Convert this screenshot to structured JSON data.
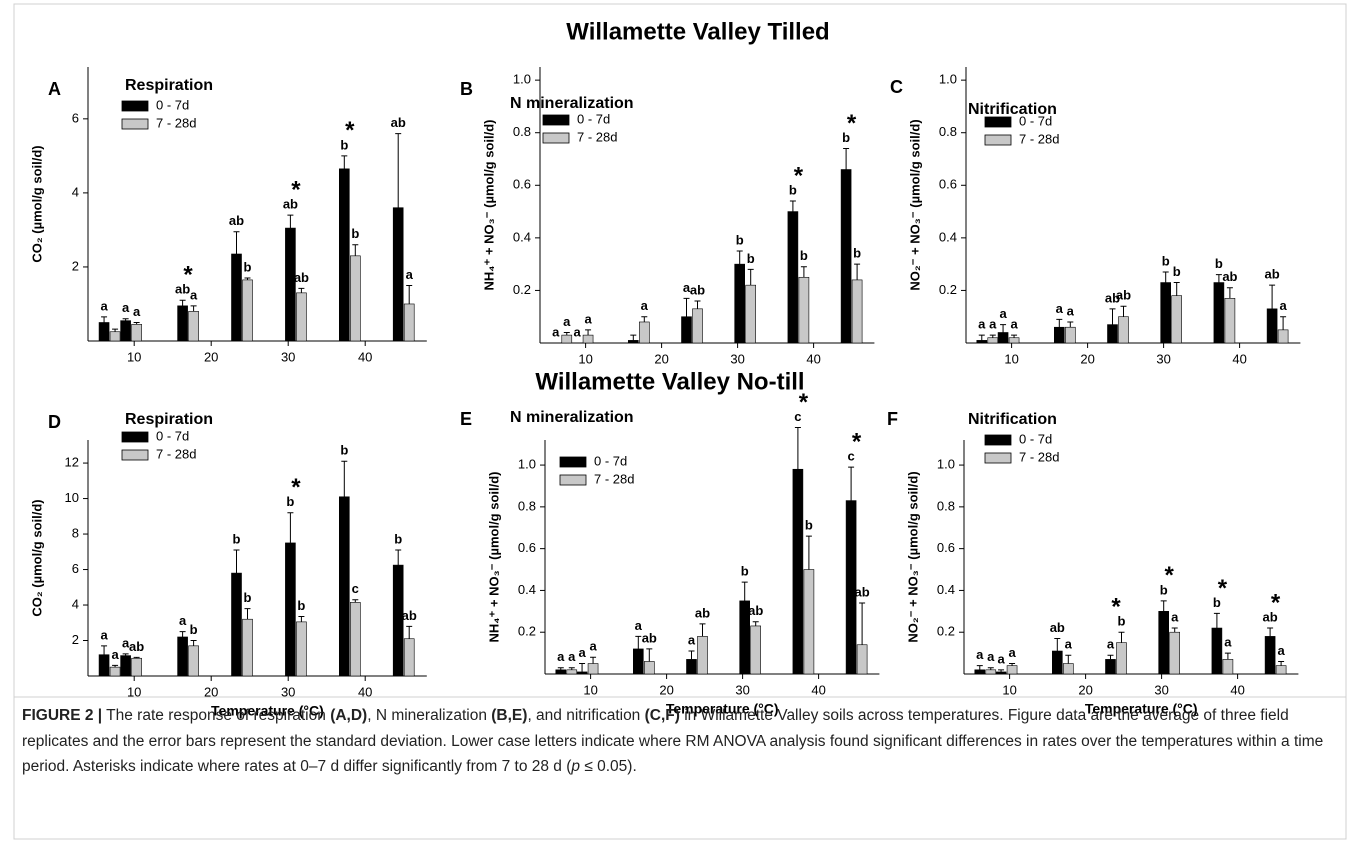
{
  "group_titles": [
    "Willamette Valley Tilled",
    "Willamette Valley No-till"
  ],
  "chart_data": [
    {
      "type": "bar",
      "panel": "A",
      "title": "Respiration",
      "ylabel": "CO₂  (µmol/g soil/d)",
      "x": [
        6.8,
        9.6,
        17,
        24,
        31,
        38,
        45
      ],
      "xlim": [
        4,
        48
      ],
      "xticks": [
        10,
        20,
        30,
        40
      ],
      "ylim": [
        0,
        7.4
      ],
      "yticks": [
        2,
        4,
        6
      ],
      "series": [
        {
          "name": "0 - 7d",
          "color": "#000000",
          "values": [
            0.5,
            0.55,
            0.95,
            2.35,
            3.05,
            4.65,
            3.6
          ],
          "errors": [
            0.15,
            0.05,
            0.15,
            0.6,
            0.35,
            0.35,
            2.0
          ],
          "letters": [
            "a",
            "a",
            "ab",
            "ab",
            "ab",
            "b",
            "ab"
          ]
        },
        {
          "name": "7 - 28d",
          "color": "#c8c8c8",
          "values": [
            0.25,
            0.45,
            0.8,
            1.65,
            1.3,
            2.3,
            1.0
          ],
          "errors": [
            0.07,
            0.05,
            0.15,
            0.05,
            0.12,
            0.3,
            0.5
          ],
          "letters": [
            null,
            "a",
            "a",
            "b",
            "ab",
            "b",
            "a"
          ]
        }
      ],
      "asterisks": [
        null,
        null,
        "*",
        null,
        "*",
        "*",
        null
      ]
    },
    {
      "type": "bar",
      "panel": "B",
      "title": "N mineralization",
      "ylabel": "NH₄⁺ + NO₃⁻  (µmol/g soil/d)",
      "x": [
        6.8,
        9.6,
        17,
        24,
        31,
        38,
        45
      ],
      "xlim": [
        4,
        48
      ],
      "xticks": [
        10,
        20,
        30,
        40
      ],
      "ylim": [
        0,
        1.05
      ],
      "yticks": [
        0.2,
        0.4,
        0.6,
        0.8,
        {
          "value": 1,
          "label": "1.0"
        }
      ],
      "series": [
        {
          "name": "0 - 7d",
          "color": "#000000",
          "values": [
            0,
            0,
            0.01,
            0.1,
            0.3,
            0.5,
            0.66
          ],
          "errors": [
            0,
            0,
            0.02,
            0.07,
            0.05,
            0.04,
            0.08
          ],
          "letters": [
            "a",
            "a",
            null,
            "a",
            "b",
            "b",
            "b"
          ]
        },
        {
          "name": "7 - 28d",
          "color": "#c8c8c8",
          "values": [
            0.03,
            0.03,
            0.08,
            0.13,
            0.22,
            0.25,
            0.24
          ],
          "errors": [
            0.01,
            0.02,
            0.02,
            0.03,
            0.06,
            0.04,
            0.06
          ],
          "letters": [
            "a",
            "a",
            "a",
            "ab",
            "b",
            "b",
            "b"
          ]
        }
      ],
      "asterisks": [
        null,
        null,
        null,
        null,
        null,
        "*",
        "*"
      ]
    },
    {
      "type": "bar",
      "panel": "C",
      "title": "Nitrification",
      "ylabel": "NO₂⁻ + NO₃⁻  (µmol/g soil/d)",
      "x": [
        6.8,
        9.6,
        17,
        24,
        31,
        38,
        45
      ],
      "xlim": [
        4,
        48
      ],
      "xticks": [
        10,
        20,
        30,
        40
      ],
      "ylim": [
        0,
        1.05
      ],
      "yticks": [
        0.2,
        0.4,
        0.6,
        0.8,
        {
          "value": 1,
          "label": "1.0"
        }
      ],
      "series": [
        {
          "name": "0 - 7d",
          "color": "#000000",
          "values": [
            0.01,
            0.04,
            0.06,
            0.07,
            0.23,
            0.23,
            0.13
          ],
          "errors": [
            0.02,
            0.03,
            0.03,
            0.06,
            0.04,
            0.03,
            0.09
          ],
          "letters": [
            "a",
            "a",
            "a",
            "ab",
            "b",
            "b",
            "ab"
          ]
        },
        {
          "name": "7 - 28d",
          "color": "#c8c8c8",
          "values": [
            0.02,
            0.02,
            0.06,
            0.1,
            0.18,
            0.17,
            0.05
          ],
          "errors": [
            0.01,
            0.01,
            0.02,
            0.04,
            0.05,
            0.04,
            0.05
          ],
          "letters": [
            "a",
            "a",
            "a",
            "ab",
            "b",
            "ab",
            "a"
          ]
        }
      ],
      "asterisks": [
        null,
        null,
        null,
        null,
        null,
        null,
        null
      ]
    },
    {
      "type": "bar",
      "panel": "D",
      "title": "Respiration",
      "ylabel": "CO₂  (µmol/g soil/d)",
      "xlabel": "Temperature (°C)",
      "x": [
        6.8,
        9.6,
        17,
        24,
        31,
        38,
        45
      ],
      "xlim": [
        4,
        48
      ],
      "xticks": [
        10,
        20,
        30,
        40
      ],
      "ylim": [
        0,
        13.3
      ],
      "yticks": [
        2,
        4,
        6,
        8,
        10,
        12
      ],
      "series": [
        {
          "name": "0 - 7d",
          "color": "#000000",
          "values": [
            1.2,
            1.15,
            2.2,
            5.8,
            7.5,
            10.1,
            6.25
          ],
          "errors": [
            0.5,
            0.1,
            0.3,
            1.3,
            1.7,
            2.0,
            0.85
          ],
          "letters": [
            "a",
            "a",
            "a",
            "b",
            "b",
            "b",
            "b"
          ]
        },
        {
          "name": "7 - 28d",
          "color": "#c8c8c8",
          "values": [
            0.5,
            1.0,
            1.7,
            3.2,
            3.05,
            4.15,
            2.1
          ],
          "errors": [
            0.1,
            0.05,
            0.3,
            0.6,
            0.3,
            0.15,
            0.7
          ],
          "letters": [
            "a",
            "ab",
            "b",
            "b",
            "b",
            "c",
            "ab"
          ]
        }
      ],
      "asterisks": [
        null,
        null,
        null,
        null,
        "*",
        null,
        null
      ]
    },
    {
      "type": "bar",
      "panel": "E",
      "title": "N mineralization",
      "ylabel": "NH₄⁺ + NO₃⁻  (µmol/g soil/d)",
      "xlabel": "Temperature (°C)",
      "x": [
        6.8,
        9.6,
        17,
        24,
        31,
        38,
        45
      ],
      "xlim": [
        4,
        48
      ],
      "xticks": [
        10,
        20,
        30,
        40
      ],
      "ylim": [
        0,
        1.12
      ],
      "yticks": [
        0.2,
        0.4,
        0.6,
        0.8,
        {
          "value": 1,
          "label": "1.0"
        }
      ],
      "series": [
        {
          "name": "0 - 7d",
          "color": "#000000",
          "values": [
            0.02,
            0.01,
            0.12,
            0.07,
            0.35,
            0.98,
            0.83
          ],
          "errors": [
            0.01,
            0.04,
            0.06,
            0.04,
            0.09,
            0.2,
            0.16
          ],
          "letters": [
            "a",
            "a",
            "a",
            "a",
            "b",
            "c",
            "c"
          ]
        },
        {
          "name": "7 - 28d",
          "color": "#c8c8c8",
          "values": [
            0.02,
            0.05,
            0.06,
            0.18,
            0.23,
            0.5,
            0.14
          ],
          "errors": [
            0.01,
            0.03,
            0.06,
            0.06,
            0.02,
            0.16,
            0.2
          ],
          "letters": [
            "a",
            "a",
            "ab",
            "ab",
            "ab",
            "b",
            "ab"
          ]
        }
      ],
      "asterisks": [
        null,
        null,
        null,
        null,
        null,
        "*",
        "*"
      ]
    },
    {
      "type": "bar",
      "panel": "F",
      "title": "Nitrification",
      "ylabel": "NO₂⁻ + NO₃⁻  (µmol/g soil/d)",
      "xlabel": "Temperature (°C)",
      "x": [
        6.8,
        9.6,
        17,
        24,
        31,
        38,
        45
      ],
      "xlim": [
        4,
        48
      ],
      "xticks": [
        10,
        20,
        30,
        40
      ],
      "ylim": [
        0,
        1.12
      ],
      "yticks": [
        0.2,
        0.4,
        0.6,
        0.8,
        {
          "value": 1,
          "label": "1.0"
        }
      ],
      "series": [
        {
          "name": "0 - 7d",
          "color": "#000000",
          "values": [
            0.02,
            0.01,
            0.11,
            0.07,
            0.3,
            0.22,
            0.18
          ],
          "errors": [
            0.02,
            0.01,
            0.06,
            0.02,
            0.05,
            0.07,
            0.04
          ],
          "letters": [
            "a",
            "a",
            "ab",
            "a",
            "b",
            "b",
            "ab"
          ]
        },
        {
          "name": "7 - 28d",
          "color": "#c8c8c8",
          "values": [
            0.02,
            0.04,
            0.05,
            0.15,
            0.2,
            0.07,
            0.04
          ],
          "errors": [
            0.01,
            0.01,
            0.04,
            0.05,
            0.02,
            0.03,
            0.02
          ],
          "letters": [
            "a",
            "a",
            "a",
            "b",
            "a",
            "a",
            "a"
          ]
        }
      ],
      "asterisks": [
        null,
        null,
        null,
        "*",
        "*",
        "*",
        "*"
      ]
    }
  ],
  "caption": [
    {
      "text": "FIGURE 2 |",
      "bold": true
    },
    {
      "text": " The rate response of respiration "
    },
    {
      "text": "(A,D)",
      "bold": true
    },
    {
      "text": ", N mineralization "
    },
    {
      "text": "(B,E)",
      "bold": true
    },
    {
      "text": ", and nitrification "
    },
    {
      "text": "(C,F)",
      "bold": true
    },
    {
      "text": " in Willamette Valley soils across temperatures. Figure data are the average of three field replicates and the error bars represent the standard deviation. Lower case letters indicate where RM ANOVA analysis found significant differences in rates over the temperatures within a time period. Asterisks indicate where rates at 0–7 d differ significantly from 7 to 28 d ("
    },
    {
      "text": "p",
      "italic": true
    },
    {
      "text": " ≤ 0.05)."
    }
  ]
}
